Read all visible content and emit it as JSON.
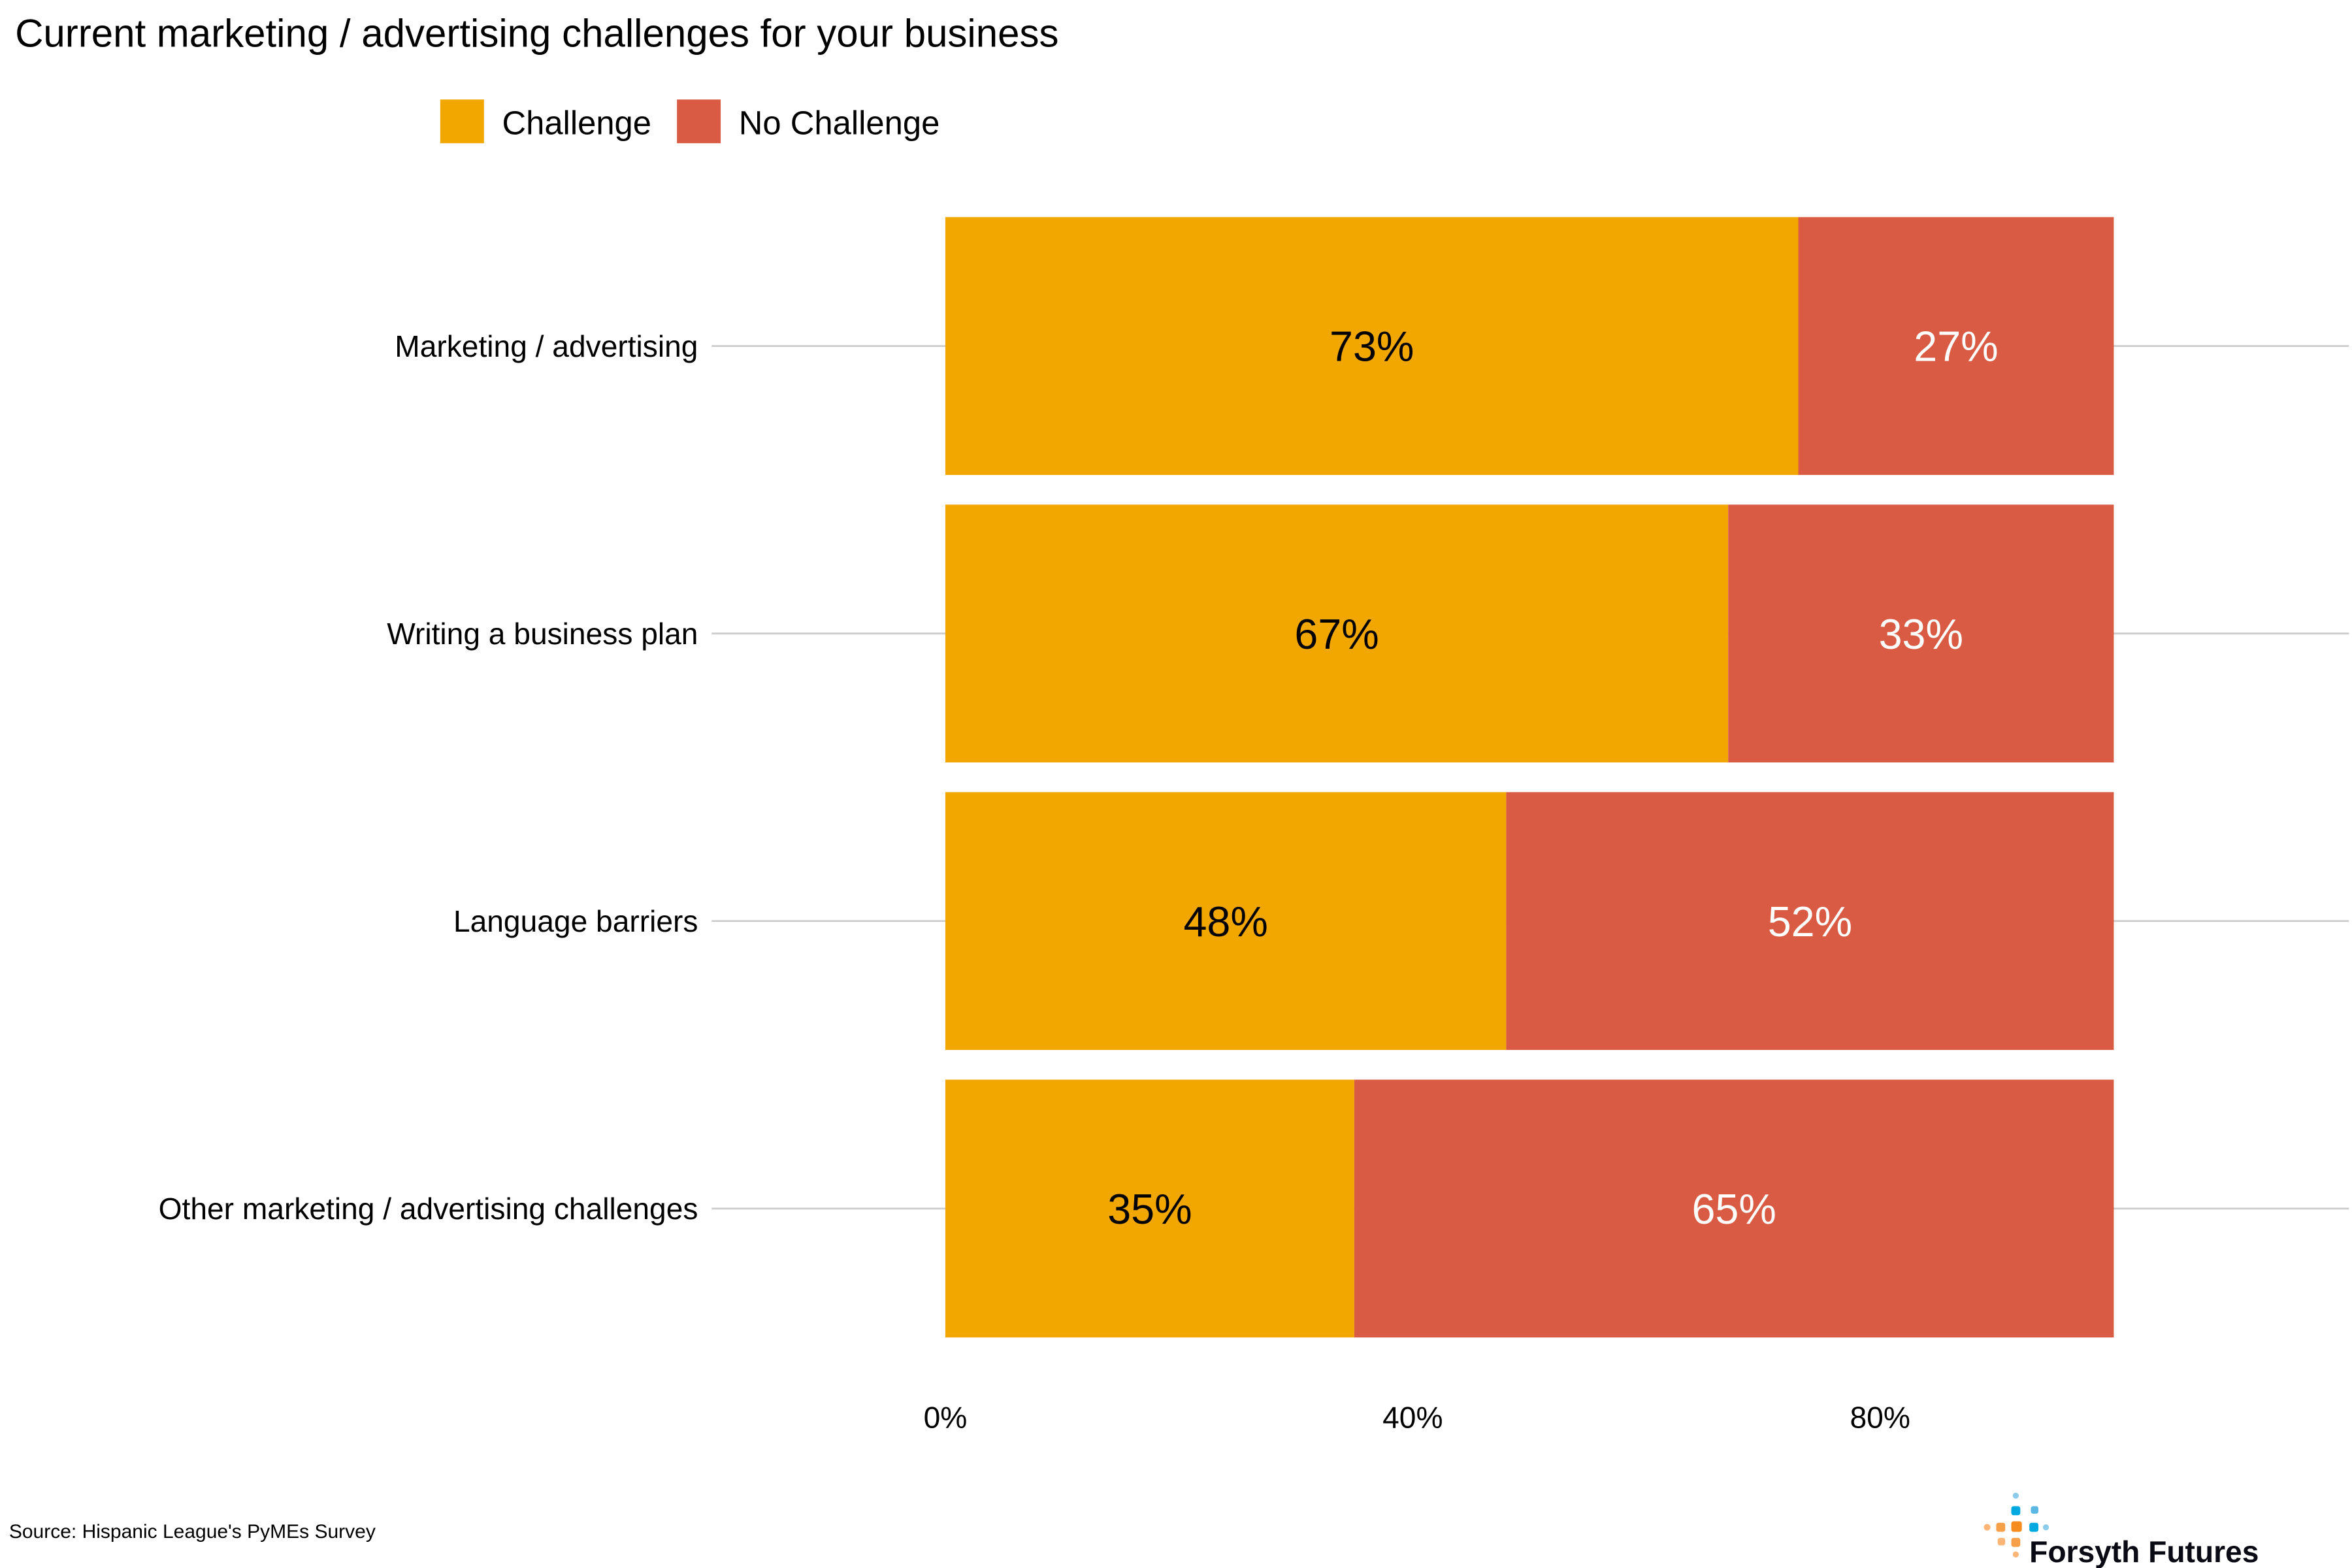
{
  "chart_data": {
    "type": "bar",
    "orientation": "horizontal",
    "stacked": true,
    "title": "Current marketing / advertising challenges for your business",
    "categories": [
      "Marketing / advertising",
      "Writing a business plan",
      "Language barriers",
      "Other marketing / advertising challenges"
    ],
    "series": [
      {
        "name": "Challenge",
        "color": "#F2A600",
        "label_color": "#000000",
        "values": [
          73,
          67,
          48,
          35
        ],
        "labels": [
          "73%",
          "67%",
          "48%",
          "35%"
        ]
      },
      {
        "name": "No Challenge",
        "color": "#D95B43",
        "label_color": "#FFFFFF",
        "values": [
          27,
          33,
          52,
          65
        ],
        "labels": [
          "27%",
          "33%",
          "52%",
          "65%"
        ]
      }
    ],
    "xlim": [
      0,
      100
    ],
    "xticks": [
      0,
      40,
      80
    ],
    "xtick_labels": [
      "0%",
      "40%",
      "80%"
    ],
    "xlabel": "",
    "ylabel": "",
    "grid": "horizontal lines at categories",
    "legend_position": "top"
  },
  "source": "Source: Hispanic League's PyMEs Survey",
  "logo": {
    "text": "Forsyth Futures",
    "colors": [
      "#F68B1F",
      "#00A9E0"
    ]
  }
}
